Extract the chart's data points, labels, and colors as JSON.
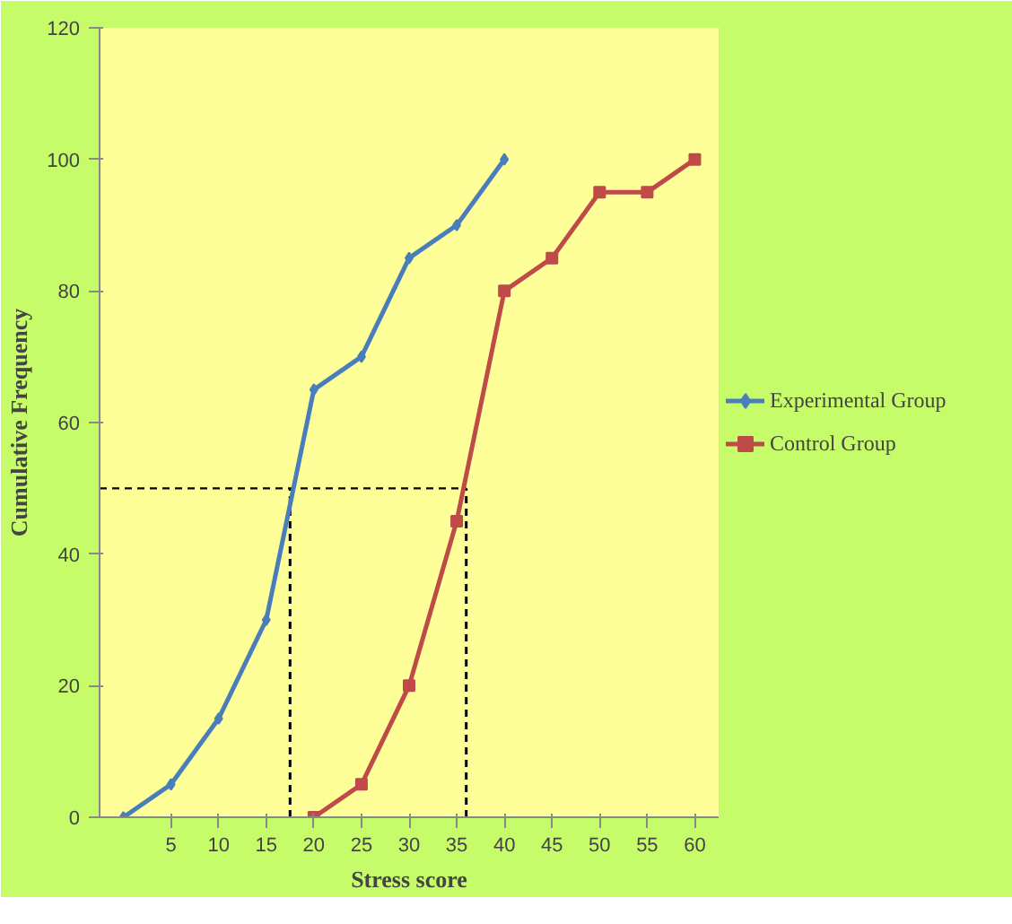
{
  "chart_data": {
    "type": "line",
    "xlabel": "Stress score",
    "ylabel": "Cumulative Frequency",
    "xlim": [
      -2.5,
      62.5
    ],
    "xticks": [
      5,
      10,
      15,
      20,
      25,
      30,
      35,
      40,
      45,
      50,
      55,
      60
    ],
    "ylim": [
      0,
      120
    ],
    "yticks": [
      0,
      20,
      40,
      60,
      80,
      100,
      120
    ],
    "series": [
      {
        "name": "Experimental Group",
        "color": "#4a7ebb",
        "marker": "diamond",
        "x": [
          0,
          5,
          10,
          15,
          20,
          25,
          30,
          35,
          40
        ],
        "values": [
          0,
          5,
          15,
          30,
          65,
          70,
          85,
          90,
          100
        ]
      },
      {
        "name": "Control Group",
        "color": "#be4b48",
        "marker": "square",
        "x": [
          20,
          25,
          30,
          35,
          40,
          45,
          50,
          55,
          60
        ],
        "values": [
          0,
          5,
          20,
          45,
          80,
          85,
          95,
          95,
          100
        ]
      }
    ],
    "ref_lines": [
      {
        "axis": "y",
        "value": 50,
        "color": "#000000",
        "line_style": "dashed"
      },
      {
        "axis": "x",
        "value": 17.5,
        "color": "#000000",
        "line_style": "dashed"
      },
      {
        "axis": "x",
        "value": 36,
        "color": "#000000",
        "line_style": "dashed"
      }
    ],
    "grid": false,
    "legend": "right"
  }
}
